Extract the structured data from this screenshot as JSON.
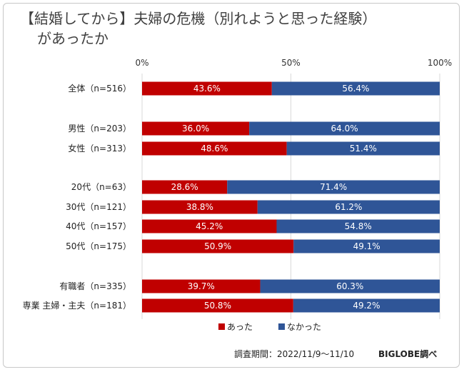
{
  "chart_data": {
    "type": "bar",
    "orientation": "horizontal",
    "stacked": true,
    "percent": true,
    "title_line1": "【結婚してから】夫婦の危機（別れようと思った経験）",
    "title_line2": "があったか",
    "xlim": [
      0,
      100
    ],
    "ticks": [
      "0%",
      "50%",
      "100%"
    ],
    "tick_values": [
      0,
      50,
      100
    ],
    "legend_position": "bottom",
    "grid": true,
    "series": [
      {
        "name": "あった",
        "color": "#c00000"
      },
      {
        "name": "なかった",
        "color": "#2f5597"
      }
    ],
    "rows": [
      {
        "label": "全体（n=516）",
        "values": [
          43.6,
          56.4
        ],
        "labels": [
          "43.6%",
          "56.4%"
        ]
      },
      {
        "label": "男性（n=203）",
        "values": [
          36.0,
          64.0
        ],
        "labels": [
          "36.0%",
          "64.0%"
        ]
      },
      {
        "label": "女性（n=313）",
        "values": [
          48.6,
          51.4
        ],
        "labels": [
          "48.6%",
          "51.4%"
        ]
      },
      {
        "label": "20代（n=63）",
        "values": [
          28.6,
          71.4
        ],
        "labels": [
          "28.6%",
          "71.4%"
        ]
      },
      {
        "label": "30代（n=121）",
        "values": [
          38.8,
          61.2
        ],
        "labels": [
          "38.8%",
          "61.2%"
        ]
      },
      {
        "label": "40代（n=157）",
        "values": [
          45.2,
          54.8
        ],
        "labels": [
          "45.2%",
          "54.8%"
        ]
      },
      {
        "label": "50代（n=175）",
        "values": [
          50.9,
          49.1
        ],
        "labels": [
          "50.9%",
          "49.1%"
        ]
      },
      {
        "label": "有職者（n=335）",
        "values": [
          39.7,
          60.3
        ],
        "labels": [
          "39.7%",
          "60.3%"
        ]
      },
      {
        "label": "専業 主婦・主夫（n=181）",
        "values": [
          50.8,
          49.2
        ],
        "labels": [
          "50.8%",
          "49.2%"
        ]
      }
    ]
  },
  "footer": {
    "period": "調査期間：2022/11/9～11/10",
    "credit": "BIGLOBE調べ"
  }
}
